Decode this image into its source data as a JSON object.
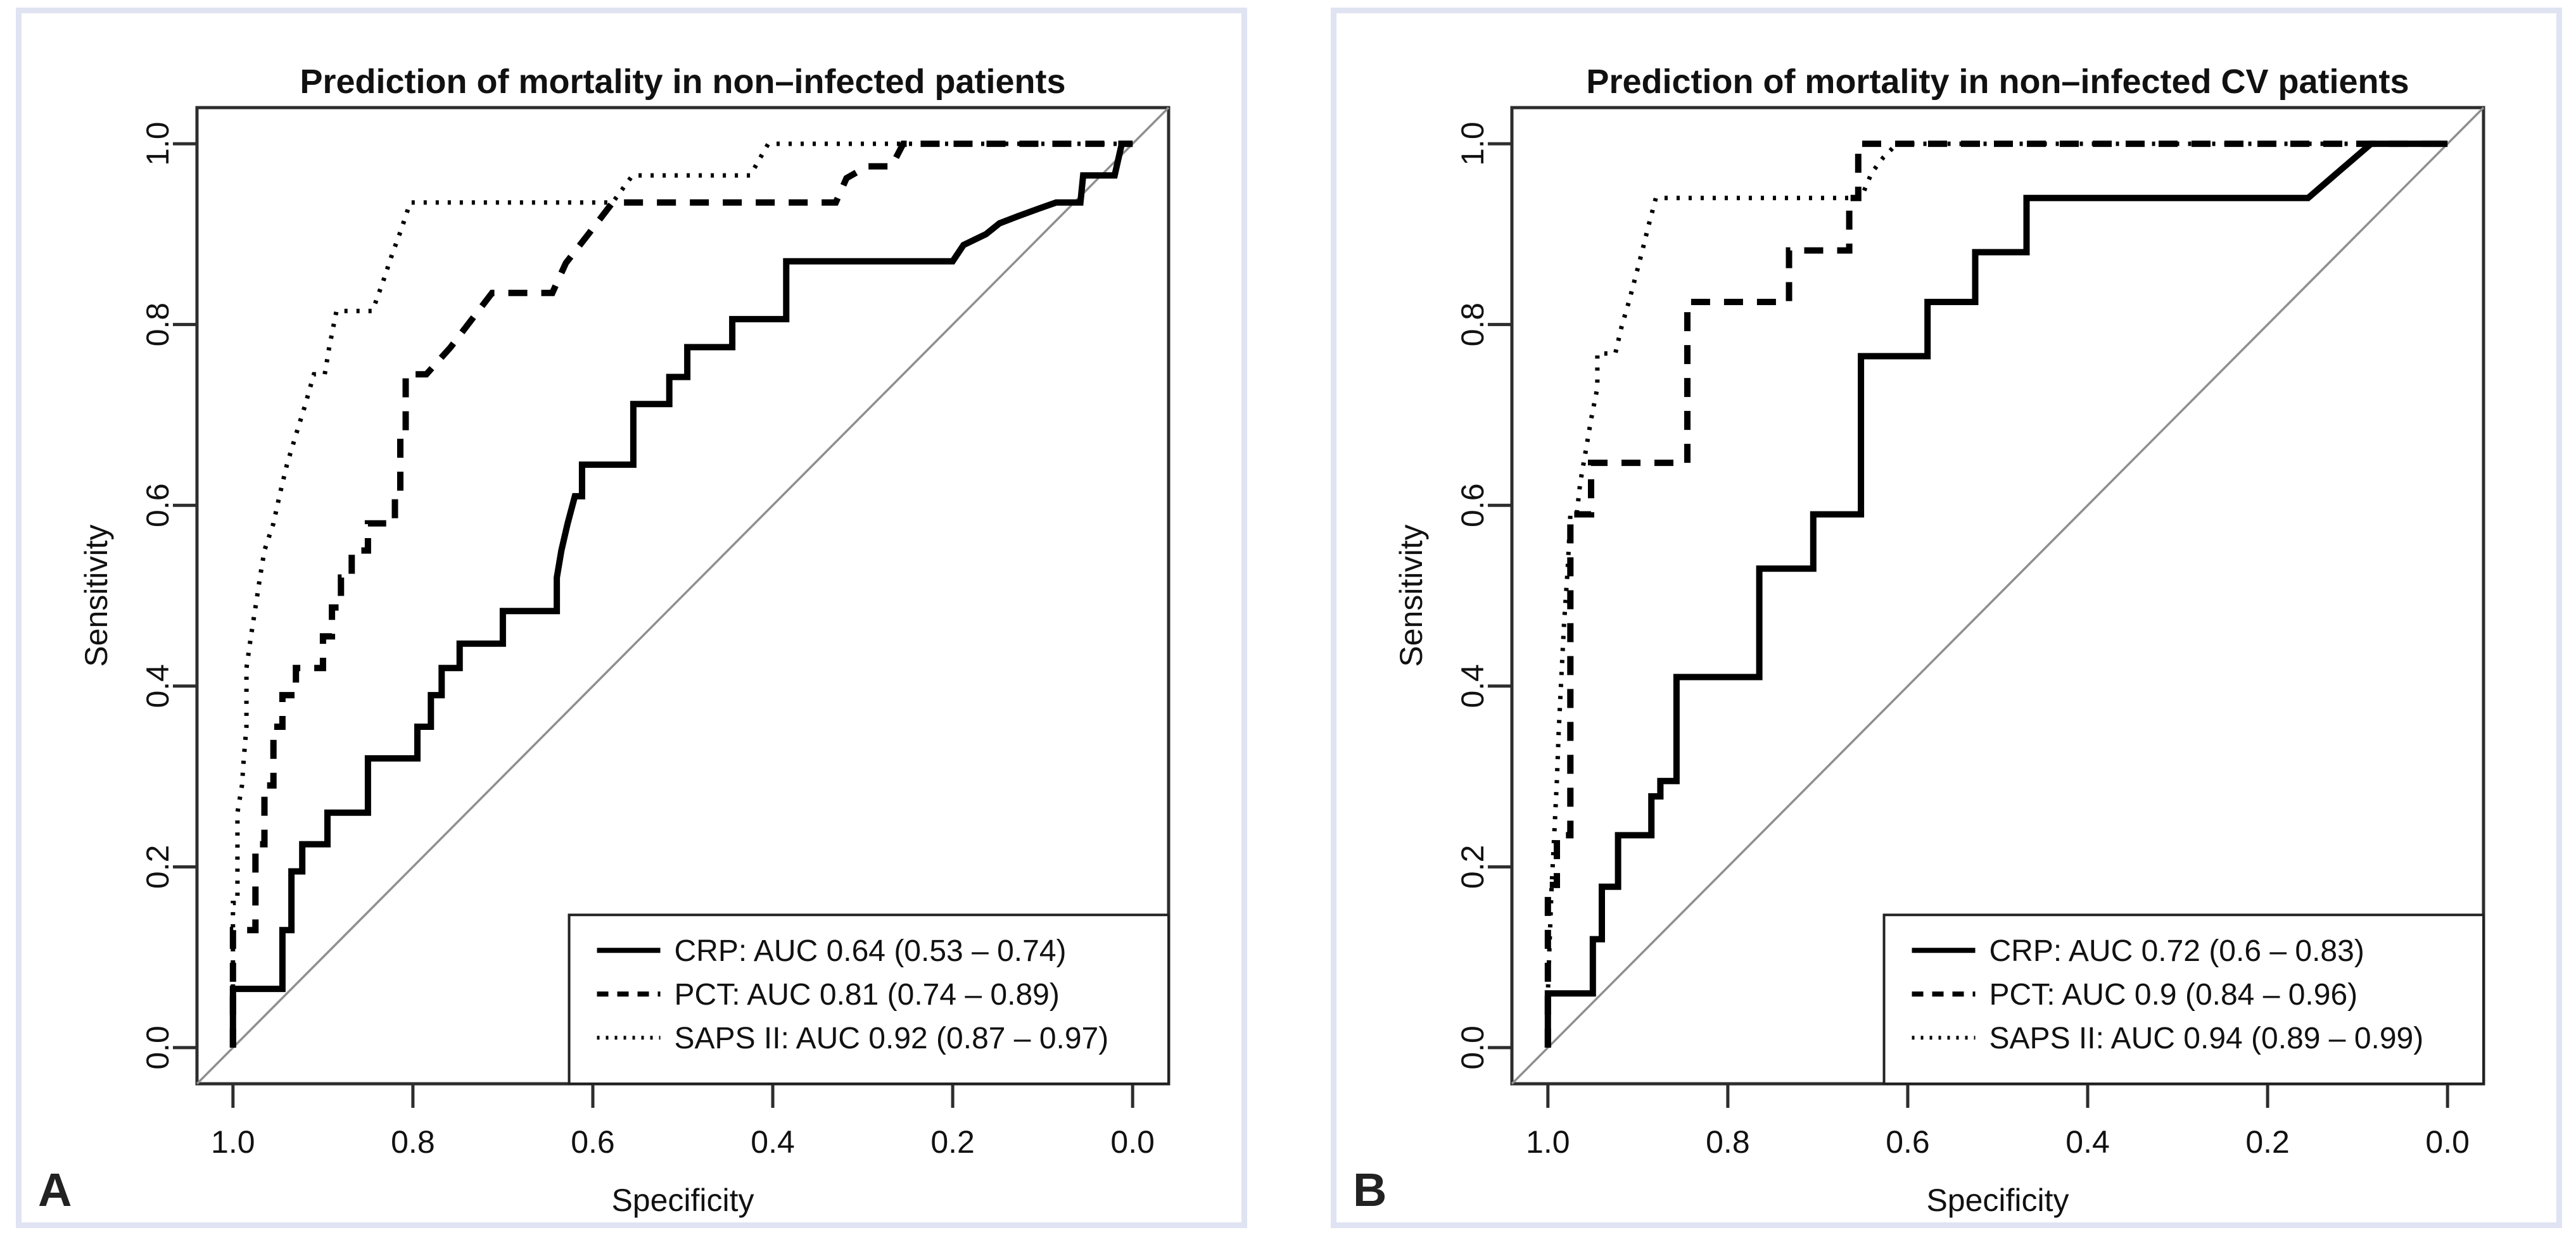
{
  "figure": {
    "background": "#ffffff",
    "panel_border_color": "#dfe3f2",
    "axis_color": "#2d2d2d",
    "curve_color": "#000000",
    "diagonal_color": "#8f8f8f",
    "legend_background": "#ffffff"
  },
  "panels": [
    {
      "label": "A"
    },
    {
      "label": "B"
    }
  ],
  "chart_data": [
    {
      "type": "line",
      "subtype": "roc-step-curves",
      "panel": "A",
      "title": "Prediction of mortality in non–infected patients",
      "xlabel": "Specificity",
      "ylabel": "Sensitivity",
      "x_axis": {
        "ticks": [
          1.0,
          0.8,
          0.6,
          0.4,
          0.2,
          0.0
        ],
        "tick_labels": [
          "1.0",
          "0.8",
          "0.6",
          "0.4",
          "0.2",
          "0.0"
        ],
        "range": [
          1.0,
          0.0
        ],
        "reversed": true
      },
      "y_axis": {
        "ticks": [
          0.0,
          0.2,
          0.4,
          0.6,
          0.8,
          1.0
        ],
        "tick_labels": [
          "0.0",
          "0.2",
          "0.4",
          "0.6",
          "0.8",
          "1.0"
        ],
        "range": [
          0.0,
          1.0
        ]
      },
      "grid": false,
      "diagonal_reference": true,
      "legend_position": "bottom-right",
      "series": [
        {
          "name": "CRP",
          "line_style": "solid",
          "auc": 0.64,
          "ci": "0.53 – 0.74",
          "legend_label": "CRP: AUC 0.64 (0.53 – 0.74)",
          "points": [
            [
              1,
              0
            ],
            [
              1,
              0.065
            ],
            [
              0.945,
              0.065
            ],
            [
              0.945,
              0.13
            ],
            [
              0.935,
              0.13
            ],
            [
              0.935,
              0.195
            ],
            [
              0.923,
              0.195
            ],
            [
              0.923,
              0.225
            ],
            [
              0.895,
              0.225
            ],
            [
              0.895,
              0.26
            ],
            [
              0.85,
              0.26
            ],
            [
              0.85,
              0.32
            ],
            [
              0.795,
              0.32
            ],
            [
              0.795,
              0.355
            ],
            [
              0.78,
              0.355
            ],
            [
              0.78,
              0.39
            ],
            [
              0.768,
              0.39
            ],
            [
              0.768,
              0.42
            ],
            [
              0.748,
              0.42
            ],
            [
              0.748,
              0.447
            ],
            [
              0.7,
              0.447
            ],
            [
              0.7,
              0.483
            ],
            [
              0.64,
              0.483
            ],
            [
              0.64,
              0.52
            ],
            [
              0.635,
              0.55
            ],
            [
              0.628,
              0.58
            ],
            [
              0.62,
              0.61
            ],
            [
              0.612,
              0.61
            ],
            [
              0.612,
              0.645
            ],
            [
              0.555,
              0.645
            ],
            [
              0.555,
              0.712
            ],
            [
              0.515,
              0.712
            ],
            [
              0.515,
              0.742
            ],
            [
              0.495,
              0.742
            ],
            [
              0.495,
              0.775
            ],
            [
              0.445,
              0.775
            ],
            [
              0.445,
              0.806
            ],
            [
              0.385,
              0.806
            ],
            [
              0.385,
              0.87
            ],
            [
              0.2,
              0.87
            ],
            [
              0.188,
              0.888
            ],
            [
              0.163,
              0.9
            ],
            [
              0.148,
              0.912
            ],
            [
              0.127,
              0.92
            ],
            [
              0.105,
              0.928
            ],
            [
              0.085,
              0.935
            ],
            [
              0.058,
              0.935
            ],
            [
              0.055,
              0.965
            ],
            [
              0.02,
              0.965
            ],
            [
              0.012,
              1
            ],
            [
              0,
              1
            ]
          ]
        },
        {
          "name": "PCT",
          "line_style": "dashed",
          "auc": 0.81,
          "ci": "0.74 – 0.89",
          "legend_label": "PCT: AUC 0.81 (0.74 – 0.89)",
          "points": [
            [
              1,
              0
            ],
            [
              1,
              0.13
            ],
            [
              0.975,
              0.13
            ],
            [
              0.975,
              0.225
            ],
            [
              0.965,
              0.225
            ],
            [
              0.965,
              0.29
            ],
            [
              0.955,
              0.29
            ],
            [
              0.955,
              0.355
            ],
            [
              0.945,
              0.355
            ],
            [
              0.945,
              0.39
            ],
            [
              0.93,
              0.39
            ],
            [
              0.93,
              0.42
            ],
            [
              0.9,
              0.42
            ],
            [
              0.9,
              0.455
            ],
            [
              0.89,
              0.455
            ],
            [
              0.89,
              0.487
            ],
            [
              0.88,
              0.487
            ],
            [
              0.88,
              0.52
            ],
            [
              0.868,
              0.52
            ],
            [
              0.868,
              0.55
            ],
            [
              0.85,
              0.55
            ],
            [
              0.85,
              0.58
            ],
            [
              0.82,
              0.58
            ],
            [
              0.82,
              0.612
            ],
            [
              0.814,
              0.612
            ],
            [
              0.814,
              0.68
            ],
            [
              0.808,
              0.68
            ],
            [
              0.808,
              0.745
            ],
            [
              0.785,
              0.745
            ],
            [
              0.758,
              0.775
            ],
            [
              0.735,
              0.805
            ],
            [
              0.712,
              0.835
            ],
            [
              0.645,
              0.835
            ],
            [
              0.63,
              0.868
            ],
            [
              0.605,
              0.9
            ],
            [
              0.578,
              0.935
            ],
            [
              0.33,
              0.935
            ],
            [
              0.318,
              0.962
            ],
            [
              0.295,
              0.975
            ],
            [
              0.268,
              0.975
            ],
            [
              0.255,
              1
            ],
            [
              0,
              1
            ]
          ]
        },
        {
          "name": "SAPS II",
          "line_style": "dotted",
          "auc": 0.92,
          "ci": "0.87 – 0.97",
          "legend_label": "SAPS II: AUC 0.92 (0.87 – 0.97)",
          "points": [
            [
              1,
              0
            ],
            [
              1,
              0.16
            ],
            [
              0.995,
              0.16
            ],
            [
              0.995,
              0.26
            ],
            [
              0.99,
              0.29
            ],
            [
              0.988,
              0.32
            ],
            [
              0.985,
              0.355
            ],
            [
              0.985,
              0.42
            ],
            [
              0.98,
              0.455
            ],
            [
              0.975,
              0.487
            ],
            [
              0.97,
              0.52
            ],
            [
              0.965,
              0.55
            ],
            [
              0.955,
              0.58
            ],
            [
              0.948,
              0.612
            ],
            [
              0.94,
              0.645
            ],
            [
              0.93,
              0.678
            ],
            [
              0.92,
              0.71
            ],
            [
              0.91,
              0.745
            ],
            [
              0.898,
              0.745
            ],
            [
              0.893,
              0.775
            ],
            [
              0.885,
              0.815
            ],
            [
              0.845,
              0.815
            ],
            [
              0.833,
              0.848
            ],
            [
              0.823,
              0.878
            ],
            [
              0.813,
              0.905
            ],
            [
              0.803,
              0.935
            ],
            [
              0.578,
              0.935
            ],
            [
              0.556,
              0.965
            ],
            [
              0.425,
              0.965
            ],
            [
              0.405,
              1
            ],
            [
              0,
              1
            ]
          ]
        }
      ]
    },
    {
      "type": "line",
      "subtype": "roc-step-curves",
      "panel": "B",
      "title": "Prediction of mortality in non–infected CV patients",
      "xlabel": "Specificity",
      "ylabel": "Sensitivity",
      "x_axis": {
        "ticks": [
          1.0,
          0.8,
          0.6,
          0.4,
          0.2,
          0.0
        ],
        "tick_labels": [
          "1.0",
          "0.8",
          "0.6",
          "0.4",
          "0.2",
          "0.0"
        ],
        "range": [
          1.0,
          0.0
        ],
        "reversed": true
      },
      "y_axis": {
        "ticks": [
          0.0,
          0.2,
          0.4,
          0.6,
          0.8,
          1.0
        ],
        "tick_labels": [
          "0.0",
          "0.2",
          "0.4",
          "0.6",
          "0.8",
          "1.0"
        ],
        "range": [
          0.0,
          1.0
        ]
      },
      "grid": false,
      "diagonal_reference": true,
      "legend_position": "bottom-right",
      "series": [
        {
          "name": "CRP",
          "line_style": "solid",
          "auc": 0.72,
          "ci": "0.6 – 0.83",
          "legend_label": "CRP: AUC 0.72 (0.6 – 0.83)",
          "points": [
            [
              1,
              0
            ],
            [
              1,
              0.06
            ],
            [
              0.95,
              0.06
            ],
            [
              0.95,
              0.12
            ],
            [
              0.94,
              0.12
            ],
            [
              0.94,
              0.178
            ],
            [
              0.922,
              0.178
            ],
            [
              0.922,
              0.235
            ],
            [
              0.885,
              0.235
            ],
            [
              0.885,
              0.278
            ],
            [
              0.875,
              0.278
            ],
            [
              0.875,
              0.295
            ],
            [
              0.857,
              0.295
            ],
            [
              0.857,
              0.41
            ],
            [
              0.765,
              0.41
            ],
            [
              0.765,
              0.53
            ],
            [
              0.705,
              0.53
            ],
            [
              0.705,
              0.59
            ],
            [
              0.652,
              0.59
            ],
            [
              0.652,
              0.765
            ],
            [
              0.578,
              0.765
            ],
            [
              0.578,
              0.825
            ],
            [
              0.525,
              0.825
            ],
            [
              0.525,
              0.88
            ],
            [
              0.468,
              0.88
            ],
            [
              0.468,
              0.94
            ],
            [
              0.155,
              0.94
            ],
            [
              0.12,
              0.97
            ],
            [
              0.085,
              1
            ],
            [
              0,
              1
            ]
          ]
        },
        {
          "name": "PCT",
          "line_style": "dashed",
          "auc": 0.9,
          "ci": "0.84 – 0.96",
          "legend_label": "PCT: AUC 0.9 (0.84 – 0.96)",
          "points": [
            [
              1,
              0
            ],
            [
              1,
              0.18
            ],
            [
              0.99,
              0.18
            ],
            [
              0.99,
              0.235
            ],
            [
              0.975,
              0.235
            ],
            [
              0.975,
              0.59
            ],
            [
              0.952,
              0.59
            ],
            [
              0.952,
              0.647
            ],
            [
              0.845,
              0.647
            ],
            [
              0.845,
              0.825
            ],
            [
              0.732,
              0.825
            ],
            [
              0.732,
              0.882
            ],
            [
              0.665,
              0.882
            ],
            [
              0.665,
              0.94
            ],
            [
              0.655,
              0.94
            ],
            [
              0.655,
              1
            ],
            [
              0,
              1
            ]
          ]
        },
        {
          "name": "SAPS II",
          "line_style": "dotted",
          "auc": 0.94,
          "ci": "0.89 – 0.99",
          "legend_label": "SAPS II: AUC 0.94 (0.89 – 0.99)",
          "points": [
            [
              1,
              0
            ],
            [
              1,
              0.06
            ],
            [
              0.998,
              0.12
            ],
            [
              0.996,
              0.175
            ],
            [
              0.993,
              0.235
            ],
            [
              0.99,
              0.295
            ],
            [
              0.988,
              0.35
            ],
            [
              0.985,
              0.41
            ],
            [
              0.982,
              0.47
            ],
            [
              0.978,
              0.53
            ],
            [
              0.975,
              0.59
            ],
            [
              0.968,
              0.59
            ],
            [
              0.964,
              0.625
            ],
            [
              0.958,
              0.66
            ],
            [
              0.952,
              0.695
            ],
            [
              0.945,
              0.73
            ],
            [
              0.945,
              0.768
            ],
            [
              0.925,
              0.768
            ],
            [
              0.918,
              0.798
            ],
            [
              0.91,
              0.825
            ],
            [
              0.902,
              0.855
            ],
            [
              0.895,
              0.882
            ],
            [
              0.888,
              0.91
            ],
            [
              0.88,
              0.94
            ],
            [
              0.652,
              0.94
            ],
            [
              0.64,
              0.968
            ],
            [
              0.627,
              0.985
            ],
            [
              0.612,
              1
            ],
            [
              0,
              1
            ]
          ]
        }
      ]
    }
  ]
}
